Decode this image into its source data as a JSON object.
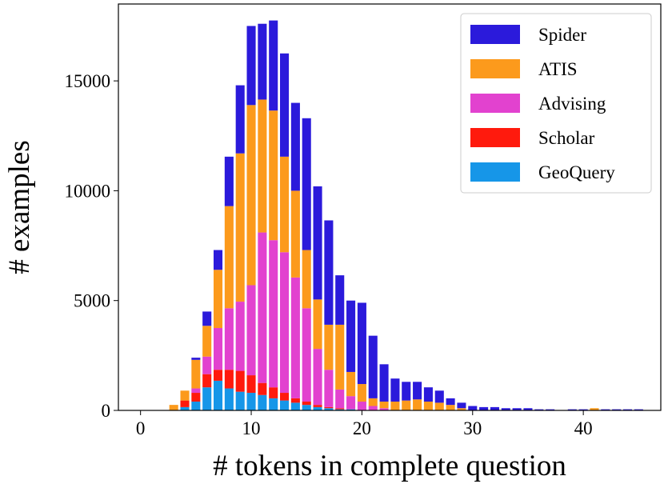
{
  "chart_data": {
    "type": "bar",
    "stacked": true,
    "xlabel": "# tokens in complete question",
    "ylabel": "# examples",
    "xlim": [
      -2,
      47
    ],
    "ylim": [
      0,
      18500
    ],
    "xticks": [
      0,
      10,
      20,
      30,
      40
    ],
    "yticks": [
      0,
      5000,
      10000,
      15000
    ],
    "grid": false,
    "legend_position": "top-right",
    "x": [
      3,
      4,
      5,
      6,
      7,
      8,
      9,
      10,
      11,
      12,
      13,
      14,
      15,
      16,
      17,
      18,
      19,
      20,
      21,
      22,
      23,
      24,
      25,
      26,
      27,
      28,
      29,
      30,
      31,
      32,
      33,
      34,
      35,
      36,
      37,
      38,
      39,
      40,
      41,
      42,
      43,
      44,
      45
    ],
    "series": [
      {
        "name": "GeoQuery",
        "color": "#1696e8",
        "values": [
          0,
          150,
          400,
          1050,
          1350,
          1000,
          850,
          800,
          700,
          550,
          450,
          350,
          250,
          150,
          100,
          50,
          50,
          0,
          0,
          0,
          0,
          0,
          0,
          0,
          0,
          0,
          0,
          0,
          0,
          0,
          0,
          0,
          0,
          0,
          0,
          0,
          0,
          0,
          0,
          0,
          0,
          0,
          0
        ]
      },
      {
        "name": "Scholar",
        "color": "#ff1a0d",
        "values": [
          0,
          300,
          400,
          600,
          500,
          850,
          950,
          800,
          550,
          500,
          350,
          200,
          150,
          100,
          50,
          50,
          0,
          0,
          0,
          0,
          0,
          0,
          0,
          0,
          0,
          0,
          0,
          0,
          0,
          0,
          0,
          0,
          0,
          0,
          0,
          0,
          0,
          0,
          0,
          0,
          0,
          0,
          0
        ]
      },
      {
        "name": "Advising",
        "color": "#e242cf",
        "values": [
          0,
          0,
          200,
          800,
          1900,
          2800,
          3150,
          4100,
          6850,
          6700,
          6400,
          5500,
          4250,
          2550,
          1700,
          850,
          600,
          400,
          200,
          100,
          0,
          0,
          0,
          0,
          0,
          0,
          0,
          0,
          0,
          0,
          0,
          0,
          0,
          0,
          0,
          0,
          0,
          0,
          0,
          0,
          0,
          0,
          0
        ]
      },
      {
        "name": "ATIS",
        "color": "#fc9a1c",
        "values": [
          250,
          450,
          1300,
          1400,
          2650,
          4650,
          6750,
          8200,
          6050,
          5900,
          4350,
          3950,
          2650,
          2250,
          2050,
          2950,
          1100,
          800,
          350,
          300,
          400,
          450,
          500,
          400,
          350,
          250,
          100,
          0,
          0,
          0,
          0,
          0,
          0,
          0,
          0,
          0,
          0,
          0,
          100,
          0,
          0,
          0,
          0
        ]
      },
      {
        "name": "Spider",
        "color": "#2b1adb",
        "values": [
          0,
          0,
          100,
          650,
          900,
          2250,
          3100,
          3600,
          3450,
          4100,
          4700,
          4000,
          6000,
          5150,
          4750,
          2250,
          3250,
          3700,
          2850,
          1700,
          1050,
          850,
          800,
          650,
          550,
          300,
          250,
          200,
          150,
          150,
          100,
          100,
          100,
          50,
          50,
          0,
          50,
          50,
          0,
          50,
          50,
          50,
          50
        ]
      }
    ]
  }
}
